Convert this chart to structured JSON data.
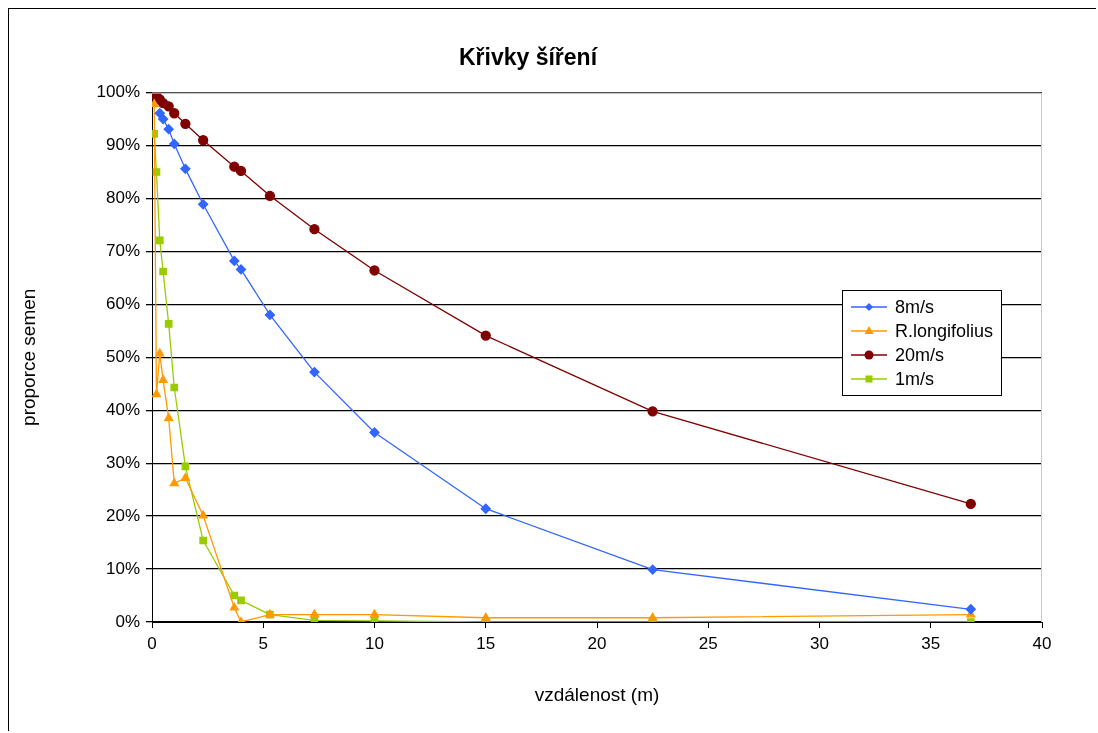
{
  "chart_data": {
    "type": "line",
    "title": "Křivky šíření",
    "xlabel": "vzdálenost (m)",
    "ylabel": "proporce semen",
    "xlim": [
      0,
      40
    ],
    "xticks": [
      0,
      5,
      10,
      15,
      20,
      25,
      30,
      35,
      40
    ],
    "ylim": [
      0,
      100
    ],
    "yticks": [
      {
        "value": 0,
        "label": "0%"
      },
      {
        "value": 10,
        "label": "10%"
      },
      {
        "value": 20,
        "label": "20%"
      },
      {
        "value": 30,
        "label": "30%"
      },
      {
        "value": 40,
        "label": "40%"
      },
      {
        "value": 50,
        "label": "50%"
      },
      {
        "value": 60,
        "label": "60%"
      },
      {
        "value": 70,
        "label": "70%"
      },
      {
        "value": 80,
        "label": "80%"
      },
      {
        "value": 90,
        "label": "90%"
      },
      {
        "value": 100,
        "label": "100%"
      }
    ],
    "grid": "y",
    "legend": "right",
    "series": [
      {
        "name": "8m/s",
        "color": "#3366ff",
        "marker": "diamond",
        "x": [
          0.35,
          0.5,
          0.75,
          1,
          1.5,
          2.3,
          3.7,
          4,
          5.3,
          7.3,
          10,
          15,
          22.5,
          36.8
        ],
        "values": [
          96.1,
          95,
          93.1,
          90.3,
          85.6,
          78.9,
          68.2,
          66.6,
          58,
          47.2,
          35.8,
          21.4,
          9.9,
          2.4
        ]
      },
      {
        "name": "R.longifolius",
        "color": "#ff9900",
        "marker": "triangle",
        "x": [
          0.1,
          0.2,
          0.35,
          0.5,
          0.75,
          1,
          1.5,
          2.3,
          3.7,
          4,
          5.3,
          7.3,
          10,
          15,
          22.5,
          36.8
        ],
        "values": [
          97.8,
          43,
          50.7,
          45.7,
          38.5,
          26.2,
          27.2,
          20.1,
          2.7,
          0,
          1.4,
          1.4,
          1.4,
          0.8,
          0.8,
          1.4
        ]
      },
      {
        "name": "20m/s",
        "color": "#800000",
        "marker": "circle",
        "x": [
          0.05,
          0.2,
          0.35,
          0.5,
          0.75,
          1,
          1.5,
          2.3,
          3.7,
          4,
          5.3,
          7.3,
          10,
          15,
          22.5,
          36.8
        ],
        "values": [
          99.7,
          99.4,
          98.7,
          98,
          97.4,
          96.1,
          94.1,
          91,
          86,
          85.2,
          80.5,
          74.2,
          66.4,
          54.1,
          39.8,
          22.3
        ]
      },
      {
        "name": "1m/s",
        "color": "#99cc00",
        "marker": "square",
        "x": [
          0.1,
          0.2,
          0.35,
          0.5,
          0.75,
          1,
          1.5,
          2.3,
          3.7,
          4,
          5.3,
          7.3,
          10,
          15,
          22.5,
          36.8
        ],
        "values": [
          92.2,
          85,
          72.1,
          66.2,
          56.3,
          44.3,
          29.4,
          15.4,
          5,
          4.1,
          1.4,
          0.3,
          0.2,
          0,
          0,
          0
        ]
      }
    ]
  }
}
